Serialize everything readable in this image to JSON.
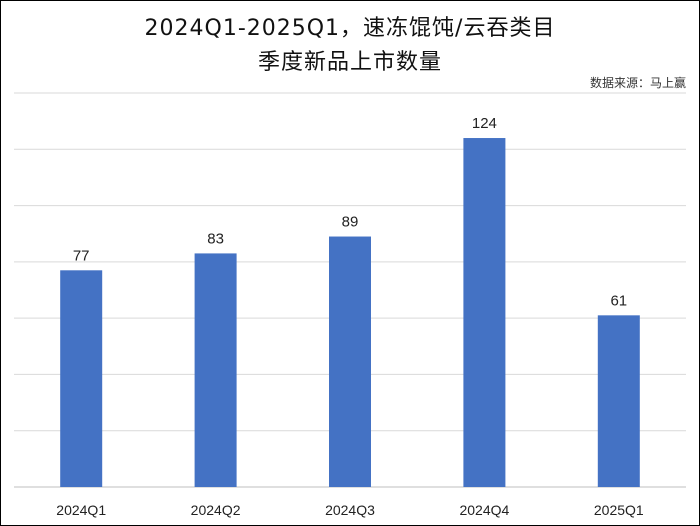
{
  "chart_data": {
    "type": "bar",
    "title_line1": "2024Q1-2025Q1，速冻馄饨/云吞类目",
    "title_line2": "季度新品上市数量",
    "source": "数据来源：马上赢",
    "categories": [
      "2024Q1",
      "2024Q2",
      "2024Q3",
      "2024Q4",
      "2025Q1"
    ],
    "values": [
      77,
      83,
      89,
      124,
      61
    ],
    "xlabel": "",
    "ylabel": "",
    "ylim": [
      0,
      140
    ],
    "grid": true,
    "bar_color": "#4472C4",
    "gridline_color": "#D9D9D9"
  }
}
